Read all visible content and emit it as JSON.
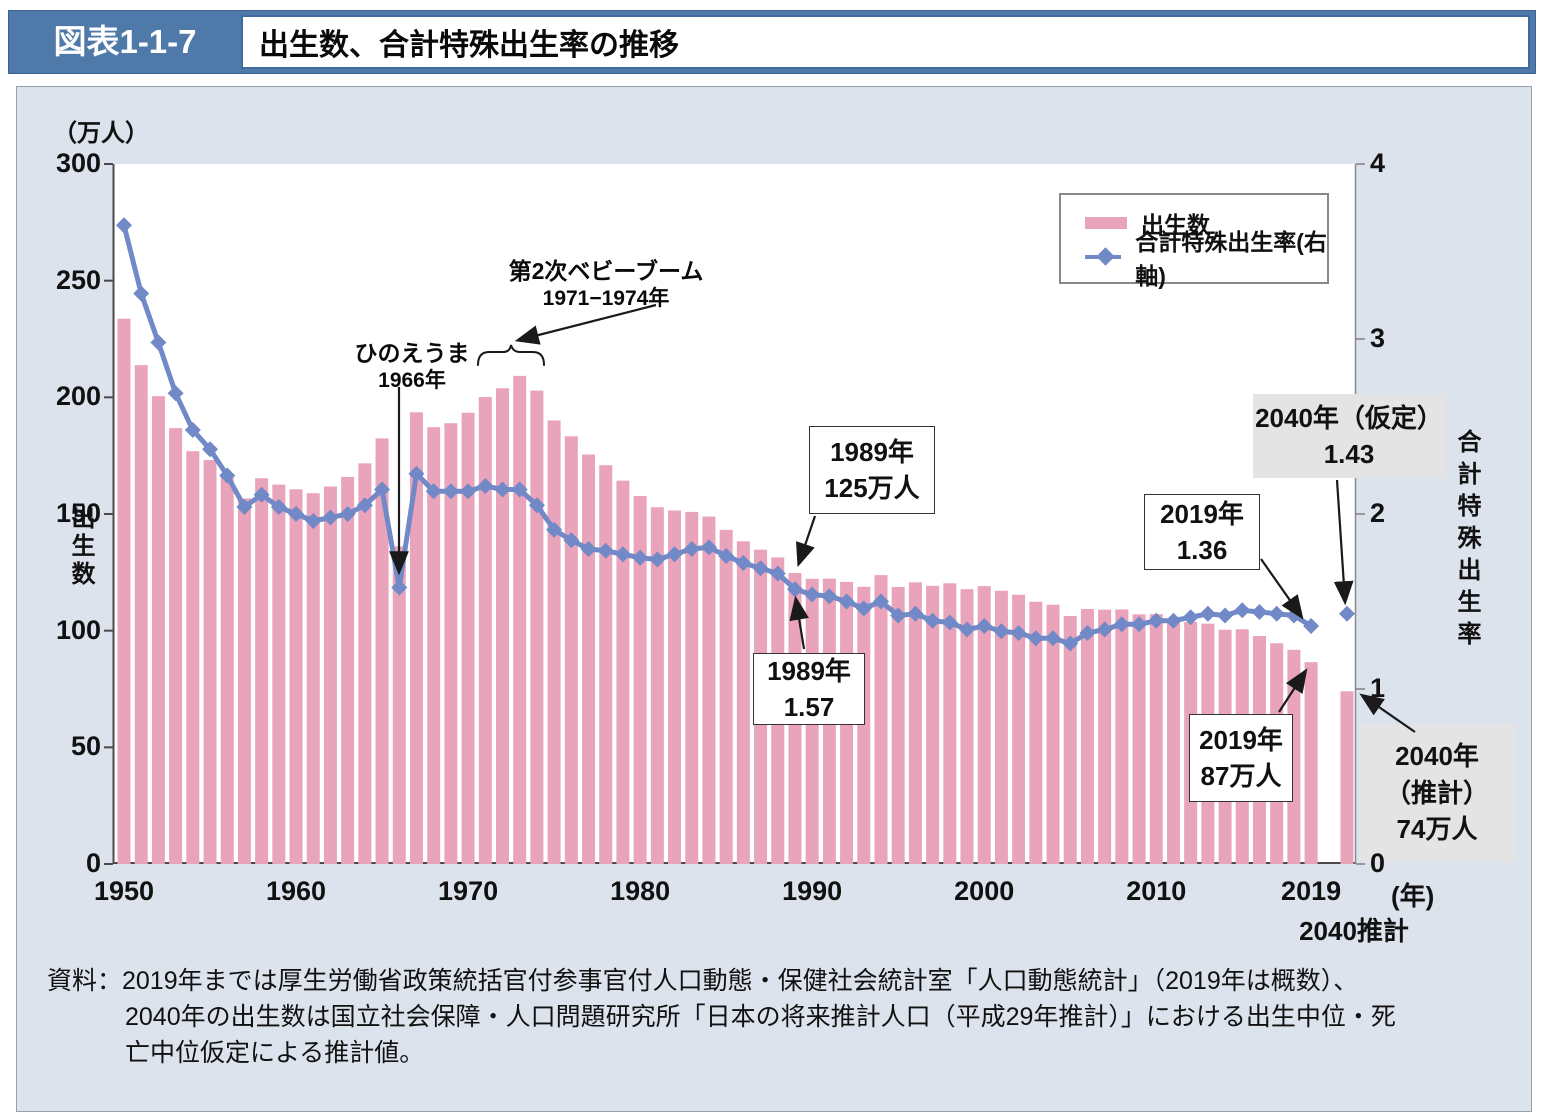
{
  "header": {
    "figure_label": "図表1-1-7",
    "title": "出生数、合計特殊出生率の推移"
  },
  "axes": {
    "left_unit": "（万人）",
    "left_title": "出生数",
    "left_ticks": [
      300,
      250,
      200,
      150,
      100,
      50,
      0
    ],
    "right_title": "合計特殊出生率",
    "right_ticks": [
      4,
      3,
      2,
      1,
      0
    ],
    "x_ticks": [
      {
        "label": "1950",
        "year": 1950
      },
      {
        "label": "1960",
        "year": 1960
      },
      {
        "label": "1970",
        "year": 1970
      },
      {
        "label": "1980",
        "year": 1980
      },
      {
        "label": "1990",
        "year": 1990
      },
      {
        "label": "2000",
        "year": 2000
      },
      {
        "label": "2010",
        "year": 2010
      },
      {
        "label": "2019",
        "year": 2019
      }
    ],
    "x_extra_label": "2040推計",
    "x_unit": "(年)"
  },
  "legend": {
    "births": "出生数",
    "tfr": "合計特殊出生率(右軸)"
  },
  "annotations": {
    "babyboom": {
      "line1": "第2次ベビーブーム",
      "line2": "1971−1974年"
    },
    "hinoeuma": {
      "line1": "ひのえうま",
      "line2": "1966年"
    },
    "births_1989": {
      "line1": "1989年",
      "line2": "125万人"
    },
    "tfr_1989": {
      "line1": "1989年",
      "line2": "1.57"
    },
    "tfr_2019": {
      "line1": "2019年",
      "line2": "1.36"
    },
    "tfr_2040": {
      "line1": "2040年（仮定）",
      "line2": "1.43"
    },
    "births_2019": {
      "line1": "2019年",
      "line2": "87万人"
    },
    "births_2040": {
      "line1": "2040年",
      "line2": "（推計）",
      "line3": "74万人"
    }
  },
  "source": {
    "line1": "資料：2019年までは厚生労働省政策統括官付参事官付人口動態・保健社会統計室「人口動態統計」（2019年は概数）、",
    "line2": "2040年の出生数は国立社会保障・人口問題研究所「日本の将来推計人口（平成29年推計）」における出生中位・死",
    "line3": "亡中位仮定による推計値。"
  },
  "chart_data": {
    "type": "bar+line",
    "title": "出生数、合計特殊出生率の推移",
    "x": [
      1950,
      1951,
      1952,
      1953,
      1954,
      1955,
      1956,
      1957,
      1958,
      1959,
      1960,
      1961,
      1962,
      1963,
      1964,
      1965,
      1966,
      1967,
      1968,
      1969,
      1970,
      1971,
      1972,
      1973,
      1974,
      1975,
      1976,
      1977,
      1978,
      1979,
      1980,
      1981,
      1982,
      1983,
      1984,
      1985,
      1986,
      1987,
      1988,
      1989,
      1990,
      1991,
      1992,
      1993,
      1994,
      1995,
      1996,
      1997,
      1998,
      1999,
      2000,
      2001,
      2002,
      2003,
      2004,
      2005,
      2006,
      2007,
      2008,
      2009,
      2010,
      2011,
      2012,
      2013,
      2014,
      2015,
      2016,
      2017,
      2018,
      2019,
      2040
    ],
    "series": [
      {
        "name": "出生数",
        "type": "bar",
        "axis": "left",
        "unit": "万人",
        "values": [
          233.7,
          213.8,
          200.5,
          186.8,
          176.9,
          173.1,
          166.5,
          156.7,
          165.3,
          162.6,
          160.6,
          158.9,
          161.8,
          165.9,
          171.7,
          182.4,
          136.1,
          193.6,
          187.2,
          188.9,
          193.4,
          200.1,
          203.9,
          209.2,
          202.9,
          190.1,
          183.3,
          175.5,
          170.9,
          164.3,
          157.7,
          152.9,
          151.5,
          150.9,
          148.9,
          143.2,
          138.3,
          134.7,
          131.4,
          124.7,
          122.2,
          122.3,
          120.9,
          118.8,
          123.8,
          118.7,
          120.7,
          119.2,
          120.3,
          117.8,
          119.1,
          117.1,
          115.4,
          112.4,
          111.1,
          106.3,
          109.3,
          109.0,
          109.1,
          107.0,
          107.1,
          105.1,
          103.7,
          103.0,
          100.4,
          100.6,
          97.7,
          94.6,
          91.8,
          86.5,
          74.0
        ]
      },
      {
        "name": "合計特殊出生率(右軸)",
        "type": "line",
        "axis": "right",
        "values": [
          3.65,
          3.26,
          2.98,
          2.69,
          2.48,
          2.37,
          2.22,
          2.04,
          2.11,
          2.04,
          2.0,
          1.96,
          1.98,
          2.0,
          2.05,
          2.14,
          1.58,
          2.23,
          2.13,
          2.13,
          2.13,
          2.16,
          2.14,
          2.14,
          2.05,
          1.91,
          1.85,
          1.8,
          1.79,
          1.77,
          1.75,
          1.74,
          1.77,
          1.8,
          1.81,
          1.76,
          1.72,
          1.69,
          1.66,
          1.57,
          1.54,
          1.53,
          1.5,
          1.46,
          1.5,
          1.42,
          1.43,
          1.39,
          1.38,
          1.34,
          1.36,
          1.33,
          1.32,
          1.29,
          1.29,
          1.26,
          1.32,
          1.34,
          1.37,
          1.37,
          1.39,
          1.39,
          1.41,
          1.43,
          1.42,
          1.45,
          1.44,
          1.43,
          1.42,
          1.36,
          1.43
        ]
      }
    ],
    "left_ylim": [
      0,
      300
    ],
    "right_ylim": [
      0,
      4
    ],
    "last_point_disconnected": true,
    "grid": false,
    "legend_position": "top-right",
    "colors": {
      "bar": "#e9a3ba",
      "line": "#7189c6"
    }
  }
}
